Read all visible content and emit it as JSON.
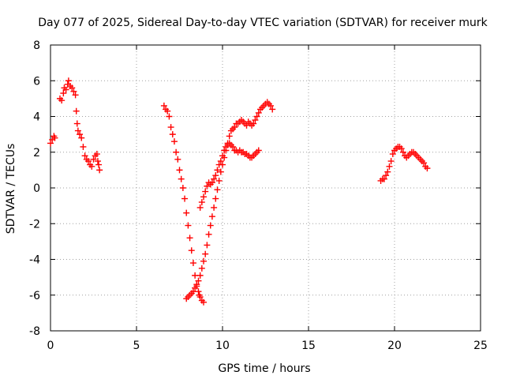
{
  "chart_data": {
    "type": "scatter",
    "title": "Day 077 of 2025, Sidereal Day-to-day VTEC variation (SDTVAR) for receiver murk",
    "xlabel": "GPS time / hours",
    "ylabel": "SDTVAR / TECUs",
    "xlim": [
      0,
      25
    ],
    "ylim": [
      -8,
      8
    ],
    "xticks": [
      0,
      5,
      10,
      15,
      20,
      25
    ],
    "yticks": [
      -8,
      -6,
      -4,
      -2,
      0,
      2,
      4,
      6,
      8
    ],
    "xtick_labels": [
      "0",
      "5",
      "10",
      "15",
      "20",
      "25"
    ],
    "ytick_labels": [
      "-8",
      "-6",
      "-4",
      "-2",
      "0",
      "2",
      "4",
      "6",
      "8"
    ],
    "grid": true,
    "marker": "+",
    "color": "#ff0000",
    "series": [
      {
        "points": [
          [
            0.0,
            2.5
          ],
          [
            0.1,
            2.7
          ],
          [
            0.2,
            2.9
          ],
          [
            0.25,
            2.8
          ],
          [
            0.55,
            5.0
          ],
          [
            0.65,
            4.9
          ],
          [
            0.75,
            5.3
          ],
          [
            0.8,
            5.6
          ],
          [
            0.9,
            5.5
          ],
          [
            1.0,
            5.8
          ],
          [
            1.05,
            6.0
          ],
          [
            1.15,
            5.7
          ],
          [
            1.25,
            5.6
          ],
          [
            1.35,
            5.4
          ],
          [
            1.45,
            5.2
          ],
          [
            1.5,
            4.3
          ],
          [
            1.55,
            3.6
          ],
          [
            1.6,
            3.2
          ],
          [
            1.7,
            3.0
          ],
          [
            1.8,
            2.8
          ],
          [
            1.9,
            2.3
          ],
          [
            2.0,
            1.8
          ],
          [
            2.1,
            1.6
          ],
          [
            2.2,
            1.5
          ],
          [
            2.3,
            1.3
          ],
          [
            2.4,
            1.2
          ],
          [
            2.5,
            1.6
          ],
          [
            2.6,
            1.8
          ],
          [
            2.7,
            1.9
          ],
          [
            2.75,
            1.5
          ],
          [
            2.8,
            1.3
          ],
          [
            2.85,
            1.0
          ]
        ]
      },
      {
        "points": [
          [
            6.6,
            4.6
          ],
          [
            6.7,
            4.4
          ],
          [
            6.8,
            4.3
          ],
          [
            6.9,
            4.0
          ],
          [
            7.0,
            3.4
          ],
          [
            7.1,
            3.0
          ],
          [
            7.2,
            2.6
          ],
          [
            7.3,
            2.0
          ],
          [
            7.4,
            1.6
          ],
          [
            7.5,
            1.0
          ],
          [
            7.6,
            0.5
          ],
          [
            7.7,
            0.0
          ],
          [
            7.8,
            -0.6
          ],
          [
            7.9,
            -1.4
          ],
          [
            8.0,
            -2.1
          ],
          [
            8.1,
            -2.8
          ],
          [
            8.2,
            -3.5
          ],
          [
            8.3,
            -4.2
          ],
          [
            8.4,
            -4.9
          ],
          [
            8.5,
            -5.4
          ],
          [
            8.6,
            -5.8
          ],
          [
            8.65,
            -6.0
          ],
          [
            8.7,
            -6.1
          ],
          [
            8.8,
            -6.3
          ],
          [
            8.9,
            -6.4
          ]
        ]
      },
      {
        "points": [
          [
            7.9,
            -6.2
          ],
          [
            8.0,
            -6.1
          ],
          [
            8.1,
            -6.0
          ],
          [
            8.2,
            -5.9
          ],
          [
            8.3,
            -5.8
          ],
          [
            8.4,
            -5.6
          ],
          [
            8.5,
            -5.5
          ],
          [
            8.6,
            -5.2
          ],
          [
            8.7,
            -4.9
          ],
          [
            8.8,
            -4.5
          ],
          [
            8.9,
            -4.1
          ],
          [
            9.0,
            -3.7
          ],
          [
            9.1,
            -3.2
          ],
          [
            9.2,
            -2.6
          ],
          [
            9.3,
            -2.1
          ],
          [
            9.4,
            -1.6
          ],
          [
            9.5,
            -1.1
          ],
          [
            9.6,
            -0.6
          ],
          [
            9.7,
            -0.1
          ],
          [
            9.8,
            0.4
          ],
          [
            9.9,
            0.9
          ],
          [
            10.0,
            1.3
          ],
          [
            10.1,
            1.7
          ],
          [
            10.2,
            2.1
          ],
          [
            10.3,
            2.5
          ],
          [
            10.4,
            2.9
          ],
          [
            10.5,
            3.2
          ],
          [
            10.6,
            3.3
          ],
          [
            10.7,
            3.4
          ],
          [
            10.8,
            3.6
          ],
          [
            10.9,
            3.6
          ],
          [
            11.0,
            3.7
          ],
          [
            11.1,
            3.8
          ],
          [
            11.2,
            3.7
          ],
          [
            11.3,
            3.6
          ],
          [
            11.4,
            3.5
          ],
          [
            11.5,
            3.7
          ],
          [
            11.6,
            3.6
          ],
          [
            11.7,
            3.5
          ],
          [
            11.8,
            3.6
          ],
          [
            11.9,
            3.8
          ],
          [
            12.0,
            4.0
          ],
          [
            12.1,
            4.2
          ],
          [
            12.2,
            4.4
          ],
          [
            12.3,
            4.5
          ],
          [
            12.4,
            4.6
          ],
          [
            12.5,
            4.7
          ],
          [
            12.6,
            4.8
          ],
          [
            12.7,
            4.7
          ],
          [
            12.8,
            4.6
          ],
          [
            12.9,
            4.4
          ]
        ]
      },
      {
        "points": [
          [
            8.7,
            -1.1
          ],
          [
            8.8,
            -0.8
          ],
          [
            8.9,
            -0.5
          ],
          [
            9.0,
            -0.2
          ],
          [
            9.1,
            0.1
          ],
          [
            9.2,
            0.3
          ],
          [
            9.3,
            0.2
          ],
          [
            9.4,
            0.3
          ],
          [
            9.5,
            0.5
          ],
          [
            9.6,
            0.7
          ],
          [
            9.7,
            1.0
          ],
          [
            9.8,
            1.3
          ],
          [
            9.9,
            1.5
          ],
          [
            10.0,
            1.8
          ],
          [
            10.1,
            2.1
          ],
          [
            10.2,
            2.3
          ],
          [
            10.3,
            2.4
          ],
          [
            10.4,
            2.5
          ],
          [
            10.5,
            2.4
          ],
          [
            10.6,
            2.3
          ],
          [
            10.7,
            2.1
          ],
          [
            10.8,
            2.1
          ],
          [
            10.9,
            2.0
          ],
          [
            11.0,
            2.1
          ],
          [
            11.1,
            2.0
          ],
          [
            11.2,
            2.0
          ],
          [
            11.3,
            1.9
          ],
          [
            11.4,
            1.9
          ],
          [
            11.5,
            1.8
          ],
          [
            11.6,
            1.7
          ],
          [
            11.7,
            1.7
          ],
          [
            11.8,
            1.8
          ],
          [
            11.9,
            1.9
          ],
          [
            12.0,
            2.0
          ],
          [
            12.1,
            2.1
          ]
        ]
      },
      {
        "points": [
          [
            19.2,
            0.4
          ],
          [
            19.3,
            0.5
          ],
          [
            19.4,
            0.5
          ],
          [
            19.5,
            0.7
          ],
          [
            19.6,
            0.9
          ],
          [
            19.7,
            1.2
          ],
          [
            19.8,
            1.5
          ],
          [
            19.9,
            1.9
          ],
          [
            20.0,
            2.1
          ],
          [
            20.1,
            2.2
          ],
          [
            20.2,
            2.3
          ],
          [
            20.3,
            2.3
          ],
          [
            20.4,
            2.2
          ],
          [
            20.5,
            2.0
          ],
          [
            20.6,
            1.8
          ],
          [
            20.7,
            1.7
          ],
          [
            20.8,
            1.8
          ],
          [
            20.9,
            1.9
          ],
          [
            21.0,
            2.0
          ],
          [
            21.1,
            2.0
          ],
          [
            21.2,
            1.9
          ],
          [
            21.3,
            1.8
          ],
          [
            21.4,
            1.7
          ],
          [
            21.5,
            1.6
          ],
          [
            21.6,
            1.5
          ],
          [
            21.7,
            1.4
          ],
          [
            21.8,
            1.2
          ],
          [
            21.9,
            1.1
          ]
        ]
      }
    ]
  }
}
